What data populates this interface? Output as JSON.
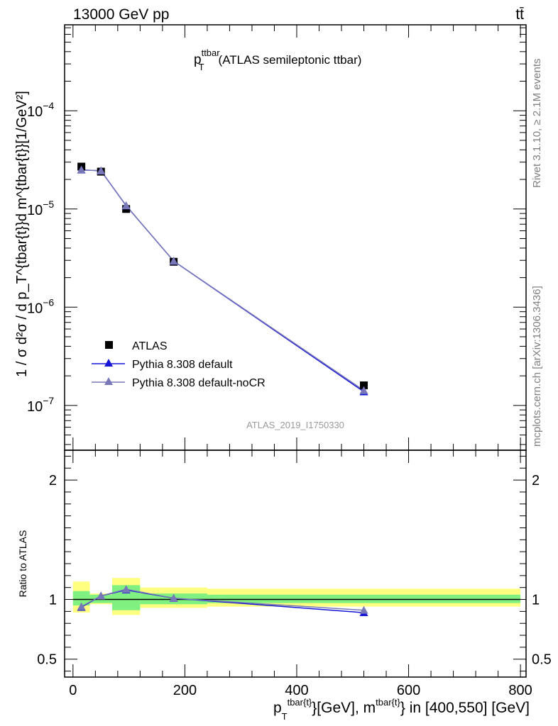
{
  "header": {
    "left": "13000 GeV pp",
    "right": "tt̄"
  },
  "side_labels": {
    "rivet": "Rivet 3.1.10, ≥ 2.1M events",
    "mcplots": "mcplots.cern.ch [arXiv:1306.3436]"
  },
  "analysis_id": "ATLAS_2019_I1750330",
  "colors": {
    "data": "#000000",
    "default": "#1515d8",
    "nocr": "#7878b8",
    "band_inner": "#80f080",
    "band_outer": "#ffff80"
  },
  "chart_data": [
    {
      "type": "line",
      "title_main": "p",
      "title_sup": "ttbar",
      "title_sub": "T",
      "title_rest": "(ATLAS semileptonic ttbar)",
      "ylabel": "1 / σ d²σ / d p_T^{tbar{t}}d m^{tbar{t}}[1/GeV²]",
      "y_scale": "log",
      "ylim": [
        3.5e-08,
        0.00075
      ],
      "y_ticks": [
        {
          "value": 1e-07,
          "base": "10",
          "exp": "−7"
        },
        {
          "value": 1e-06,
          "base": "10",
          "exp": "−6"
        },
        {
          "value": 1e-05,
          "base": "10",
          "exp": "−5"
        },
        {
          "value": 0.0001,
          "base": "10",
          "exp": "−4"
        }
      ],
      "xlim": [
        -15,
        810
      ],
      "legend_position": "bottom-left",
      "series": [
        {
          "name": "ATLAS",
          "marker": "square",
          "x": [
            15,
            50,
            95,
            180,
            520
          ],
          "y": [
            2.7e-05,
            2.4e-05,
            1e-05,
            2.9e-06,
            1.6e-07
          ]
        },
        {
          "name": "Pythia 8.308 default",
          "marker": "triangle",
          "x": [
            15,
            50,
            95,
            180,
            520
          ],
          "y": [
            2.5e-05,
            2.45e-05,
            1.08e-05,
            2.95e-06,
            1.38e-07
          ]
        },
        {
          "name": "Pythia 8.308 default-noCR",
          "marker": "triangle",
          "x": [
            15,
            50,
            95,
            180,
            520
          ],
          "y": [
            2.5e-05,
            2.45e-05,
            1.08e-05,
            2.95e-06,
            1.42e-07
          ]
        }
      ]
    },
    {
      "type": "line",
      "ylabel": "Ratio to ATLAS",
      "ylim": [
        0.35,
        2.25
      ],
      "y_ticks": [
        0.5,
        1,
        2
      ],
      "y_tick_labels": [
        "0.5",
        "1",
        "2"
      ],
      "xlim": [
        -15,
        810
      ],
      "x_ticks": [
        0,
        200,
        400,
        600,
        800
      ],
      "x_tick_labels": [
        "0",
        "200",
        "400",
        "600",
        "800"
      ],
      "xlabel": {
        "p": "p",
        "sub": "T",
        "sup1": "tbar{t}",
        "mid": "}[GeV], m",
        "sup2": "tbar{t}",
        "end": "} in [400,550] [GeV]"
      },
      "reference_line": 1,
      "bands": [
        {
          "x": [
            0,
            30
          ],
          "inner": [
            0.95,
            1.07
          ],
          "outer": [
            0.89,
            1.15
          ]
        },
        {
          "x": [
            30,
            70
          ],
          "inner": [
            0.97,
            1.04
          ],
          "outer": [
            0.96,
            1.05
          ]
        },
        {
          "x": [
            70,
            120
          ],
          "inner": [
            0.91,
            1.12
          ],
          "outer": [
            0.87,
            1.18
          ]
        },
        {
          "x": [
            120,
            240
          ],
          "inner": [
            0.96,
            1.05
          ],
          "outer": [
            0.93,
            1.1
          ]
        },
        {
          "x": [
            240,
            800
          ],
          "inner": [
            0.97,
            1.04
          ],
          "outer": [
            0.94,
            1.09
          ]
        }
      ],
      "series": [
        {
          "name": "Pythia 8.308 default",
          "x": [
            15,
            50,
            95,
            180,
            520
          ],
          "y": [
            0.935,
            1.03,
            1.08,
            1.01,
            0.89
          ]
        },
        {
          "name": "Pythia 8.308 default-noCR",
          "x": [
            15,
            50,
            95,
            180,
            520
          ],
          "y": [
            0.94,
            1.03,
            1.085,
            1.01,
            0.91
          ]
        }
      ]
    }
  ]
}
